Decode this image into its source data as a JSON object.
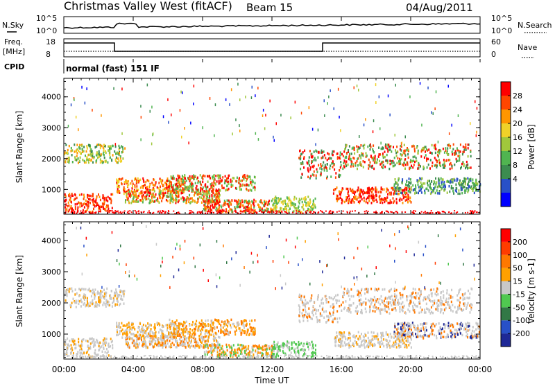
{
  "header": {
    "title": "Christmas Valley West (fitACF)",
    "beam": "Beam 15",
    "date": "04/Aug/2011"
  },
  "top_panels": {
    "nsky_label": "N.Sky",
    "nsky_ticks": [
      "10^5",
      "10^0"
    ],
    "nsearch_label": "N.Search",
    "nsearch_ticks": [
      "10^5",
      "10^0"
    ],
    "freq_label_1": "Freq.",
    "freq_label_2": "[MHz]",
    "freq_ticks": [
      "18",
      "8"
    ],
    "nave_label": "Nave",
    "nave_ticks": [
      "60",
      "0"
    ],
    "cpid_label": "CPID",
    "cpid_text": "normal (fast) 151 IF"
  },
  "chart_data": [
    {
      "type": "heatmap",
      "name": "power",
      "ylabel": "Slant Range [km]",
      "yticks": [
        "1000",
        "2000",
        "3000",
        "4000"
      ],
      "ylim": [
        200,
        4600
      ],
      "colorbar_label": "Power [dB]",
      "colorbar_ticks": [
        "28",
        "24",
        "20",
        "16",
        "12",
        "8",
        "4"
      ],
      "colorbar_colors": [
        "#0000ff",
        "#2850c8",
        "#3c8c50",
        "#50b450",
        "#a0c83c",
        "#f0d228",
        "#ff9600",
        "#ff4600",
        "#ff0000"
      ]
    },
    {
      "type": "heatmap",
      "name": "velocity",
      "ylabel": "Slant Range [km]",
      "yticks": [
        "1000",
        "2000",
        "3000",
        "4000"
      ],
      "ylim": [
        200,
        4600
      ],
      "colorbar_label": "Velocity [m s-1]",
      "colorbar_ticks": [
        "200",
        "100",
        "50",
        "15",
        "-15",
        "-50",
        "-100",
        "-200"
      ],
      "colorbar_colors": [
        "#1e2896",
        "#2850c8",
        "#327846",
        "#50c850",
        "#c8c8c8",
        "#ffa000",
        "#ff7800",
        "#ff3c00",
        "#ff0000"
      ]
    }
  ],
  "xaxis": {
    "label": "Time UT",
    "ticks": [
      "00:00",
      "04:00",
      "08:00",
      "12:00",
      "16:00",
      "20:00",
      "00:00"
    ]
  }
}
